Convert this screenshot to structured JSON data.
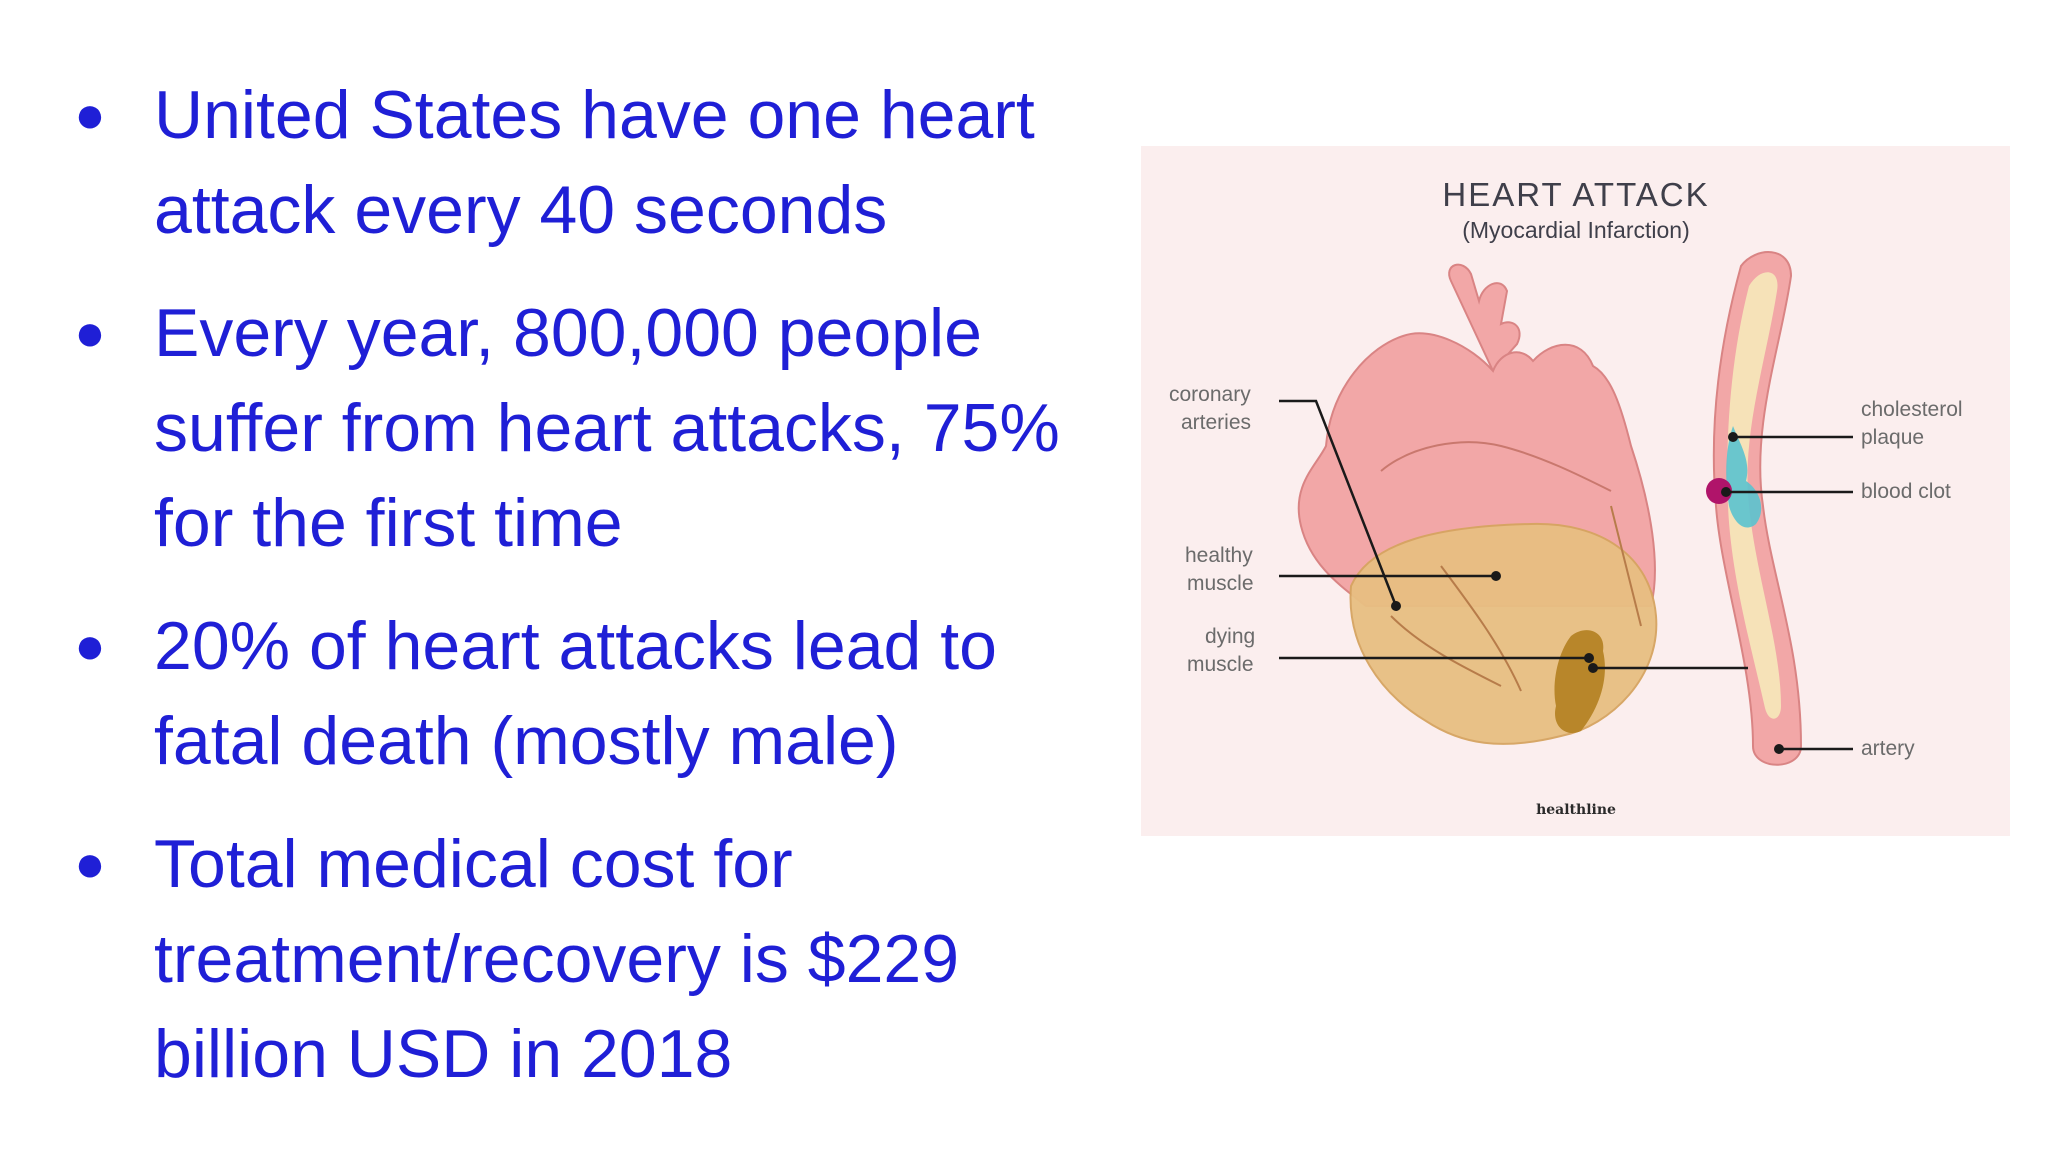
{
  "bullets": [
    {
      "marker": "●",
      "text": "United States have one heart attack every 40 seconds"
    },
    {
      "marker": "●",
      "text": "Every year, 800,000 people suffer from heart attacks, 75% for the first time"
    },
    {
      "marker": "●",
      "text": "20% of heart attacks lead to fatal death (mostly male)"
    },
    {
      "marker": "●",
      "text": "Total medical cost for treatment/recovery is $229 billion USD in 2018"
    }
  ],
  "figure": {
    "title": "HEART ATTACK",
    "subtitle": "(Myocardial Infarction)",
    "labels": {
      "coronary_1": "coronary",
      "coronary_2": "arteries",
      "healthy_1": "healthy",
      "healthy_2": "muscle",
      "dying_1": "dying",
      "dying_2": "muscle",
      "cholesterol_1": "cholesterol",
      "cholesterol_2": "plaque",
      "blood_clot": "blood clot",
      "artery": "artery"
    },
    "brand": "healthline"
  },
  "colors": {
    "text": "#1f1fd6",
    "figure_bg": "#fbeeee",
    "heart_upper": "#f2a7a7",
    "heart_muscle": "#e8bf82",
    "dying_muscle": "#b8862a",
    "plaque": "#5bc3cf",
    "clot": "#b0146a"
  }
}
